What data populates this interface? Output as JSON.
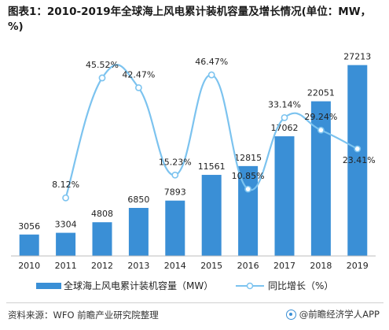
{
  "title": "图表1：2010-2019年全球海上风电累计装机容量及增长情况(单位：MW，%)",
  "source": "资料来源：WFO 前瞻产业研究院整理",
  "brand": "@前瞻经济学人APP",
  "colors": {
    "bar": "#3a8fd6",
    "line": "#7cc3ef",
    "point_fill": "#ffffff",
    "text": "#222222",
    "axis": "#bdbdbd"
  },
  "chart_data": {
    "type": "bar+line",
    "title": "图表1：2010-2019年全球海上风电累计装机容量及增长情况(单位：MW，%)",
    "categories": [
      "2010",
      "2011",
      "2012",
      "2013",
      "2014",
      "2015",
      "2016",
      "2017",
      "2018",
      "2019"
    ],
    "series": [
      {
        "name": "全球海上风电累计装机容量（MW）",
        "type": "bar",
        "values": [
          3056,
          3304,
          4808,
          6850,
          7893,
          11561,
          12815,
          17062,
          22051,
          27213
        ]
      },
      {
        "name": "同比增长（%）",
        "type": "line",
        "smooth": true,
        "values": [
          null,
          8.12,
          45.52,
          42.47,
          15.23,
          46.47,
          10.85,
          33.14,
          29.24,
          23.41
        ],
        "labels": [
          "",
          "8.12%",
          "45.52%",
          "42.47%",
          "15.23%",
          "46.47%",
          "10.85%",
          "33.14%",
          "29.24%",
          "23.41%"
        ]
      }
    ],
    "bar_ylim": [
      0,
      32000
    ],
    "line_ylim": [
      -10,
      60
    ],
    "legend_position": "bottom",
    "grid": false
  }
}
